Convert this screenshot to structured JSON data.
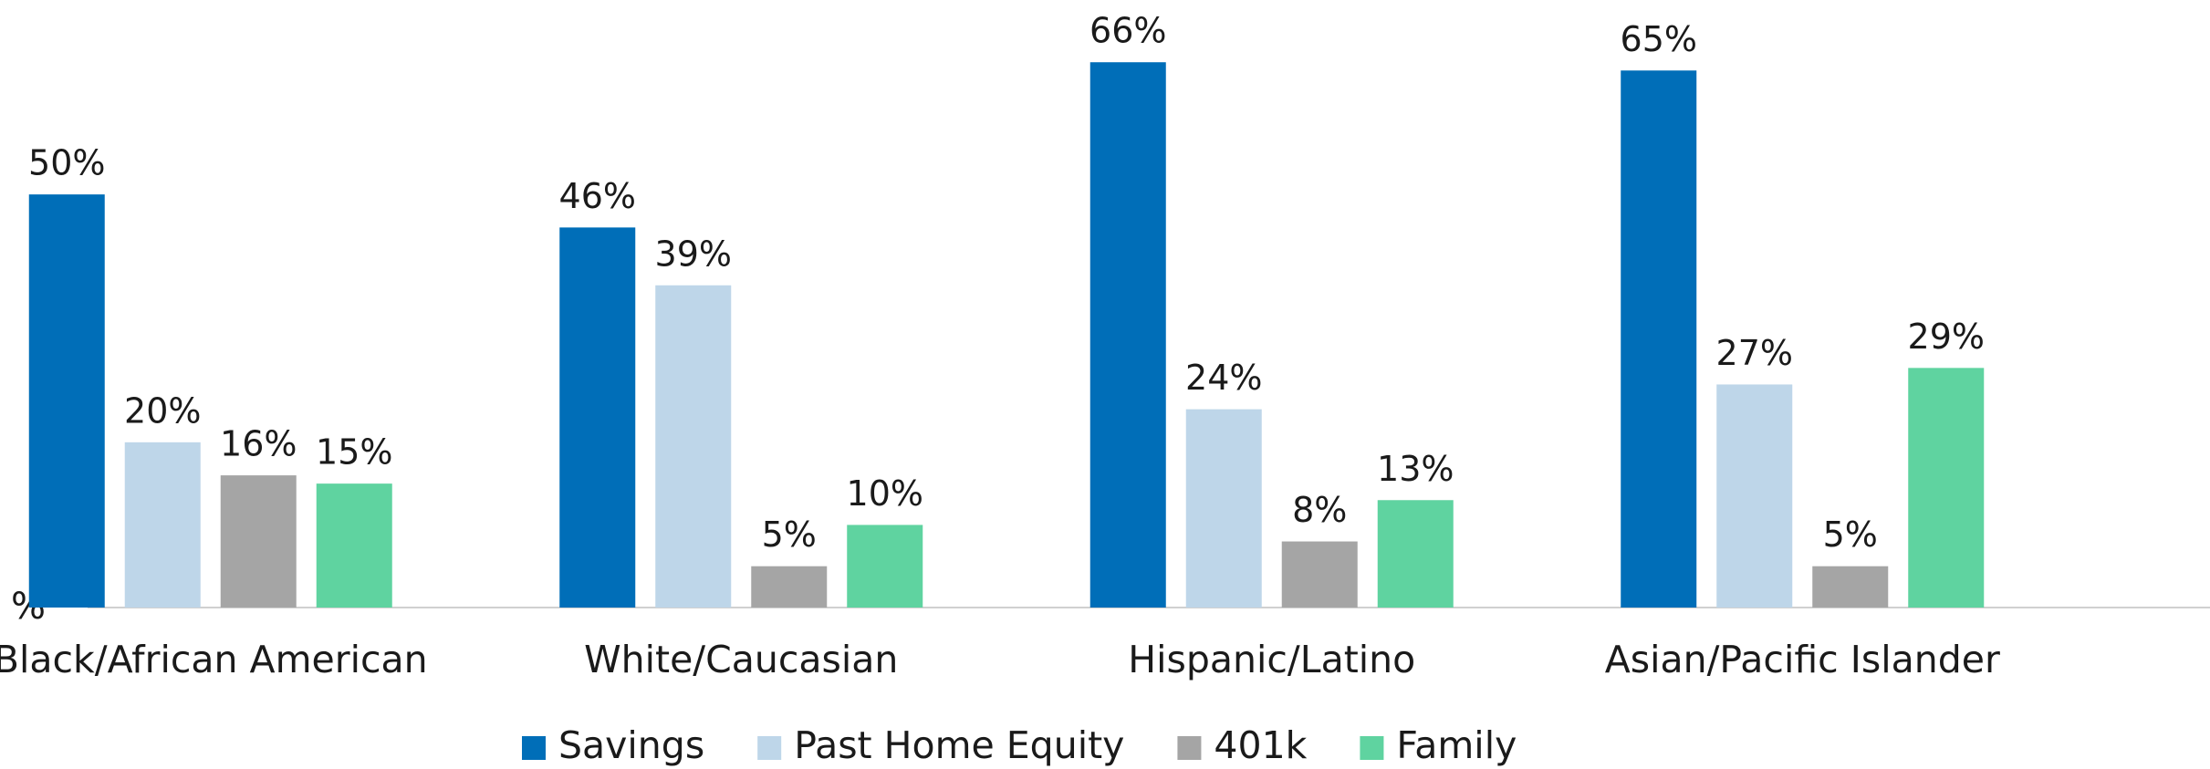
{
  "chart_data": {
    "type": "bar",
    "ylabel": "%",
    "categories": [
      "Black/African American",
      "White/Caucasian",
      "Hispanic/Latino",
      "Asian/Pacific Islander"
    ],
    "series": [
      {
        "name": "Savings",
        "color": "#006eb8",
        "values": [
          50,
          46,
          66,
          65
        ],
        "value_labels": [
          "50%",
          "46%",
          "66%",
          "65%"
        ]
      },
      {
        "name": "Past Home Equity",
        "color": "#bed6e9",
        "values": [
          20,
          39,
          24,
          27
        ],
        "value_labels": [
          "20%",
          "39%",
          "24%",
          "27%"
        ]
      },
      {
        "name": "401k",
        "color": "#a5a5a5",
        "values": [
          16,
          5,
          8,
          5
        ],
        "value_labels": [
          "16%",
          "5%",
          "8%",
          "5%"
        ]
      },
      {
        "name": "Family",
        "color": "#5fd3a0",
        "values": [
          15,
          10,
          13,
          29
        ],
        "value_labels": [
          "15%",
          "10%",
          "13%",
          "29%"
        ]
      }
    ],
    "ylim": [
      0,
      70
    ],
    "legend": "bottom"
  }
}
